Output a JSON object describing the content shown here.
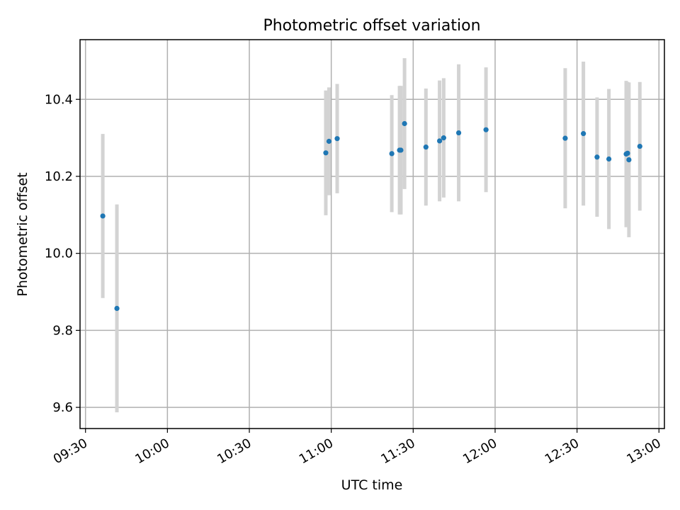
{
  "chart_data": {
    "type": "scatter",
    "title": "Photometric offset variation",
    "xlabel": "UTC time",
    "ylabel": "Photometric offset",
    "grid": true,
    "xlim": [
      "09:28",
      "13:02"
    ],
    "ylim": [
      9.545,
      10.555
    ],
    "x_ticks": [
      "09:30",
      "10:00",
      "10:30",
      "11:00",
      "11:30",
      "12:00",
      "12:30",
      "13:00"
    ],
    "y_ticks": [
      9.6,
      9.8,
      10.0,
      10.2,
      10.4
    ],
    "y_tick_labels": [
      "9.6",
      "9.8",
      "10.0",
      "10.2",
      "10.4"
    ],
    "colors": {
      "point": "#1f77b4",
      "error_bar": "#d3d3d3"
    },
    "series": [
      {
        "x": [
          "09:36:20",
          "09:41:30",
          "10:58:00",
          "10:59:10",
          "11:02:10",
          "11:22:10",
          "11:25:00",
          "11:25:30",
          "11:26:50",
          "11:34:40",
          "11:39:40",
          "11:41:10",
          "11:46:40",
          "11:56:40",
          "12:25:40",
          "12:32:20",
          "12:37:20",
          "12:41:40",
          "12:48:00",
          "12:48:30",
          "12:49:00",
          "12:53:00"
        ],
        "y": [
          10.097,
          9.857,
          10.261,
          10.291,
          10.298,
          10.259,
          10.268,
          10.268,
          10.337,
          10.276,
          10.292,
          10.3,
          10.313,
          10.321,
          10.299,
          10.311,
          10.25,
          10.245,
          10.258,
          10.26,
          10.243,
          10.278
        ],
        "y_err": [
          0.213,
          0.27,
          0.162,
          0.14,
          0.142,
          0.152,
          0.167,
          0.167,
          0.17,
          0.152,
          0.157,
          0.155,
          0.178,
          0.162,
          0.182,
          0.187,
          0.155,
          0.182,
          0.19,
          0.185,
          0.201,
          0.167
        ]
      }
    ]
  }
}
